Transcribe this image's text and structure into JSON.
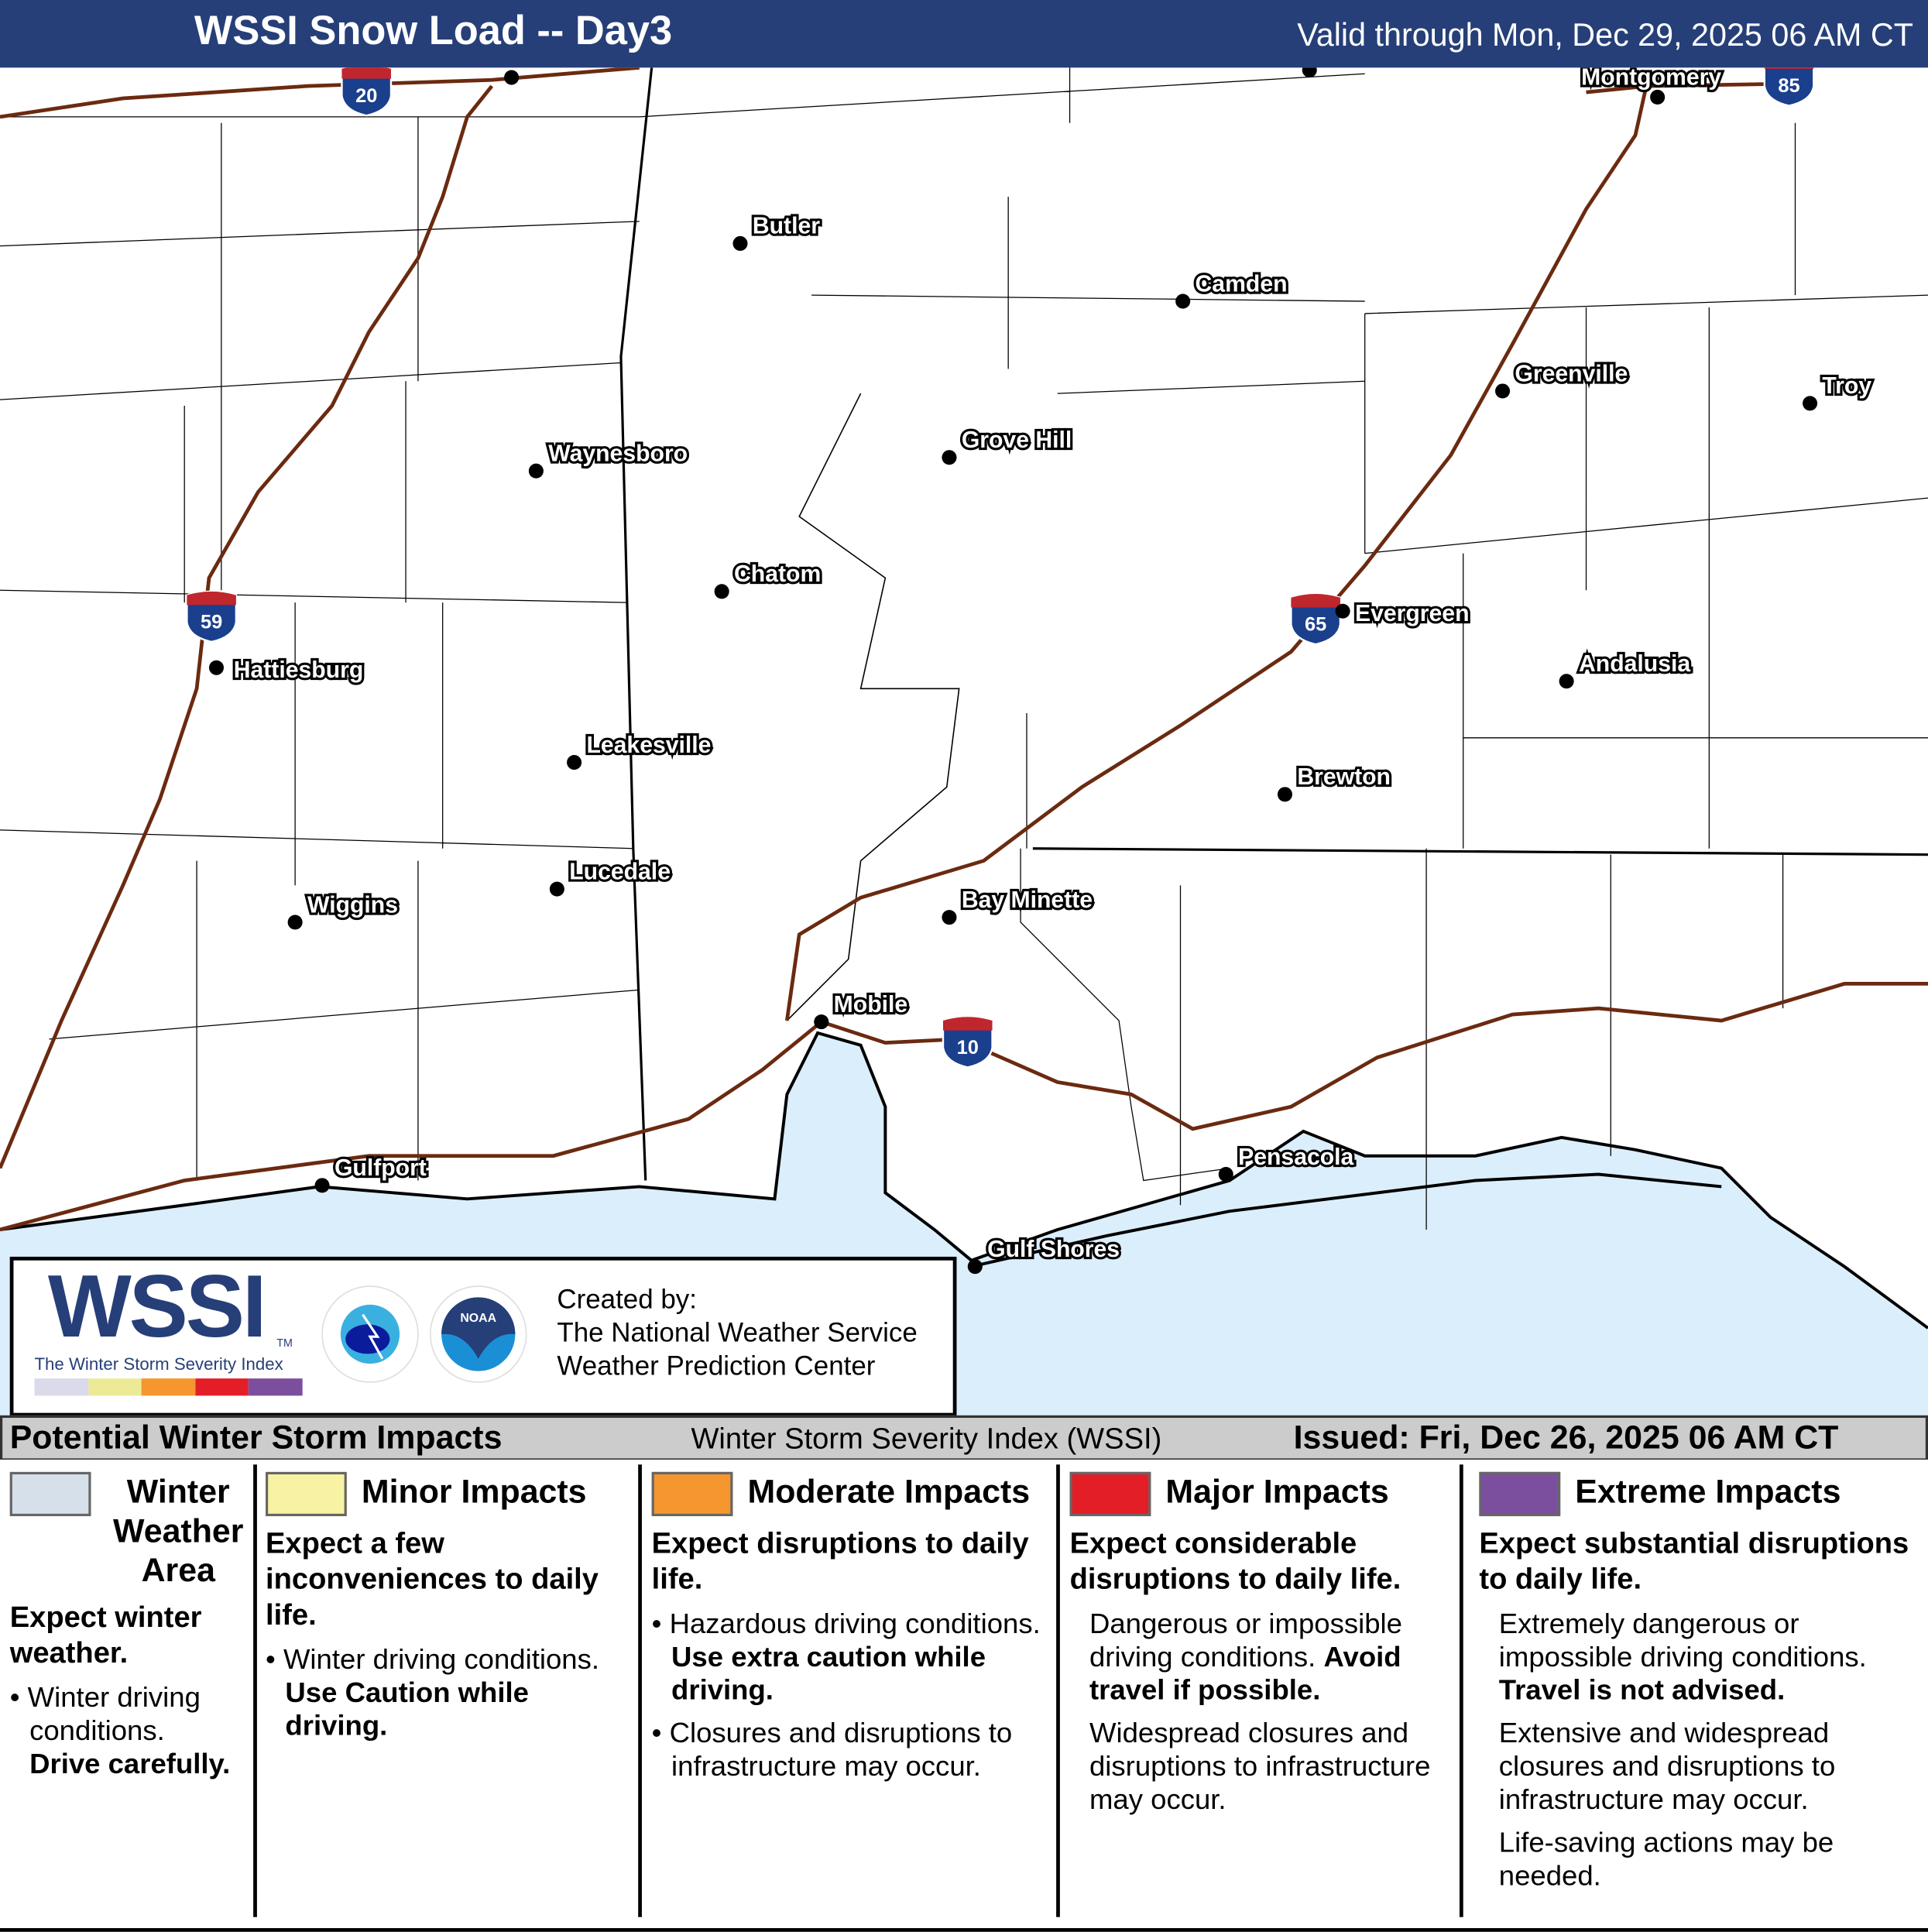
{
  "header": {
    "title": "WSSI Snow Load -- Day3",
    "valid": "Valid through Mon, Dec 29, 2025 06 AM CT"
  },
  "colors": {
    "header_bg": "#263f78",
    "water": "#dbeefc",
    "interstate": "#6b2a10",
    "none": "#d6e0ea",
    "minor": "#f7f3a2",
    "moderate": "#f5962f",
    "major": "#e41e26",
    "extreme": "#7b4f9e"
  },
  "map": {
    "cities": [
      "Montgomery",
      "Butler",
      "Camden",
      "Greenville",
      "Troy",
      "Waynesboro",
      "Grove Hill",
      "Chatom",
      "Evergreen",
      "Hattiesburg",
      "Andalusia",
      "Leakesville",
      "Brewton",
      "Lucedale",
      "Wiggins",
      "Bay Minette",
      "Mobile",
      "Gulfport",
      "Pensacola",
      "Gulf Shores"
    ],
    "interstates": [
      "20",
      "85",
      "59",
      "65",
      "10"
    ]
  },
  "logo": {
    "wssi": "WSSI",
    "tm": "TM",
    "subtitle": "The Winter Storm Severity Index",
    "created_by": "Created by:",
    "org1": "The National Weather Service",
    "org2": "Weather Prediction Center",
    "nws_seal": "NATIONAL WEATHER SERVICE",
    "noaa_seal": "NOAA"
  },
  "strip": {
    "left": "Potential Winter Storm Impacts",
    "mid": "Winter Storm Severity Index (WSSI)",
    "right": "Issued: Fri, Dec 26, 2025 06 AM CT"
  },
  "legend": [
    {
      "title": "Winter Weather Area",
      "lead": "Expect winter weather.",
      "bullets": [
        "Winter driving conditions."
      ],
      "bold": "Drive carefully."
    },
    {
      "title": "Minor Impacts",
      "lead": "Expect a few inconveniences to daily life.",
      "bullets": [
        "Winter driving conditions."
      ],
      "bold": "Use Caution while driving."
    },
    {
      "title": "Moderate Impacts",
      "lead": "Expect disruptions to daily life.",
      "bullets": [
        "Hazardous driving conditions.",
        "Closures and disruptions to infrastructure may occur."
      ],
      "bold": "Use extra caution while driving."
    },
    {
      "title": "Major Impacts",
      "lead": "Expect considerable disruptions to daily life.",
      "p1": "Dangerous or impossible driving conditions.",
      "bold": "Avoid travel if possible.",
      "p2": "Widespread closures and disruptions to infrastructure may occur."
    },
    {
      "title": "Extreme Impacts",
      "lead": "Expect substantial disruptions to daily life.",
      "p1": "Extremely dangerous or impossible driving conditions.",
      "bold": "Travel is not advised.",
      "p2": "Extensive and widespread closures and disruptions to infrastructure may occur.",
      "p3": "Life-saving actions may be needed."
    }
  ]
}
